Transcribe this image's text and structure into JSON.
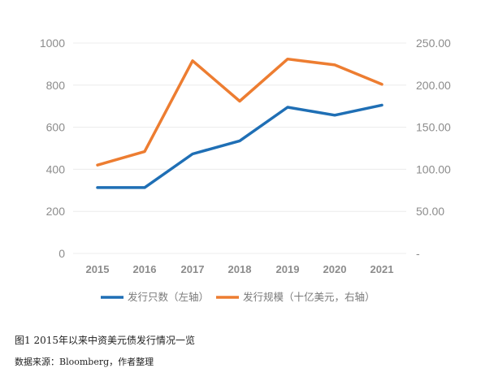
{
  "chart_data": {
    "type": "line",
    "categories": [
      "2015",
      "2016",
      "2017",
      "2018",
      "2019",
      "2020",
      "2021"
    ],
    "series": [
      {
        "name": "发行只数（左轴）",
        "axis": "left",
        "color": "#1f6fb5",
        "values": [
          313,
          313,
          473,
          535,
          695,
          657,
          705
        ]
      },
      {
        "name": "发行规模（十亿美元，右轴）",
        "axis": "right",
        "color": "#ed7d31",
        "values": [
          105,
          121,
          229,
          181,
          231,
          224,
          201
        ]
      }
    ],
    "left_axis": {
      "min": 0,
      "max": 1000,
      "ticks": [
        "0",
        "200",
        "400",
        "600",
        "800",
        "1000"
      ]
    },
    "right_axis": {
      "min": 0,
      "max": 250,
      "ticks": [
        "-",
        "50.00",
        "100.00",
        "150.00",
        "200.00",
        "250.00"
      ]
    },
    "grid": true,
    "legend_position": "bottom"
  },
  "caption": "图1 2015年以来中资美元债发行情况一览",
  "source": "数据来源：Bloomberg，作者整理"
}
